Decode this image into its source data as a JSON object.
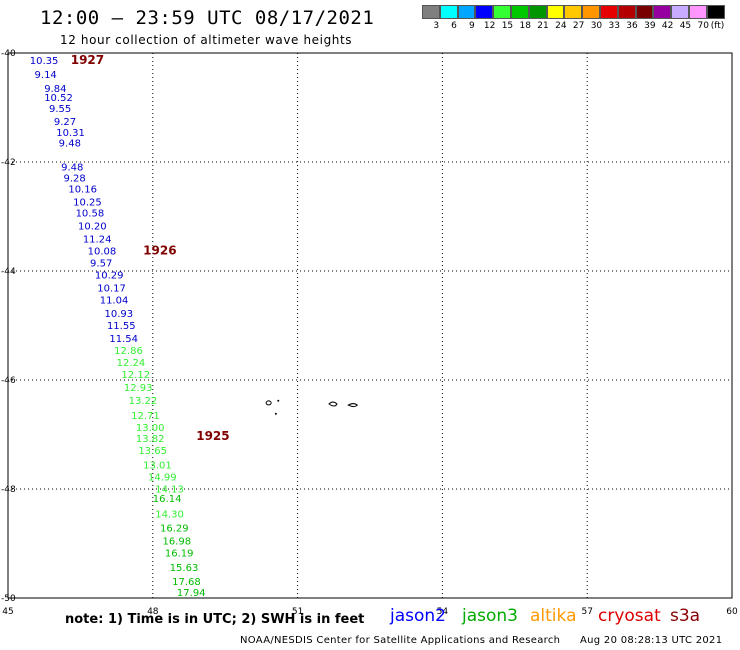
{
  "header": {
    "title": "12:00 – 23:59 UTC 08/17/2021",
    "subtitle": "12 hour collection of altimeter wave heights"
  },
  "colorbar": {
    "colors": [
      "#7f7f7f",
      "#00ffff",
      "#00a6ff",
      "#0000ff",
      "#33ff33",
      "#00c800",
      "#009600",
      "#ffff00",
      "#ffc800",
      "#ff9600",
      "#e60000",
      "#b40000",
      "#780000",
      "#9600a0",
      "#c8aaff",
      "#ff96ff",
      "#000000"
    ],
    "labels": [
      "3",
      "6",
      "9",
      "12",
      "15",
      "18",
      "21",
      "24",
      "27",
      "30",
      "33",
      "36",
      "39",
      "42",
      "45",
      "70",
      "(ft)"
    ]
  },
  "map": {
    "lon_range": [
      45,
      60
    ],
    "lat_range": [
      -50,
      -40
    ],
    "x_ticks": [
      "45",
      "48",
      "51",
      "54",
      "57",
      "60"
    ],
    "y_ticks": [
      "-40",
      "-42",
      "-44",
      "-46",
      "-48",
      "-50"
    ],
    "grid": true
  },
  "chart_data": {
    "type": "scatter",
    "x_label": "",
    "y_label": "",
    "xlim": [
      45,
      60
    ],
    "ylim": [
      -50,
      -40
    ],
    "passes": [
      {
        "label": "1927",
        "label_lon": 46.3,
        "label_lat": -40.2
      },
      {
        "label": "1926",
        "label_lon": 47.8,
        "label_lat": -43.7
      },
      {
        "label": "1925",
        "label_lon": 48.9,
        "label_lat": -47.1
      }
    ],
    "points": [
      {
        "lon": 45.45,
        "lat": -40.2,
        "swh": "10.35",
        "color": "#0000cc"
      },
      {
        "lon": 45.55,
        "lat": -40.46,
        "swh": "9.14",
        "color": "#0000cc"
      },
      {
        "lon": 45.75,
        "lat": -40.72,
        "swh": "9.84",
        "color": "#0000cc"
      },
      {
        "lon": 45.75,
        "lat": -40.88,
        "swh": "10.52",
        "color": "#0000cc"
      },
      {
        "lon": 45.85,
        "lat": -41.08,
        "swh": "9.55",
        "color": "#0000cc"
      },
      {
        "lon": 45.95,
        "lat": -41.32,
        "swh": "9.27",
        "color": "#0000cc"
      },
      {
        "lon": 46.0,
        "lat": -41.52,
        "swh": "10.31",
        "color": "#0000cc"
      },
      {
        "lon": 46.05,
        "lat": -41.72,
        "swh": "9.48",
        "color": "#0000cc"
      },
      {
        "lon": 46.1,
        "lat": -42.16,
        "swh": "9.48",
        "color": "#0000cc"
      },
      {
        "lon": 46.15,
        "lat": -42.36,
        "swh": "9.28",
        "color": "#0000cc"
      },
      {
        "lon": 46.25,
        "lat": -42.56,
        "swh": "10.16",
        "color": "#0000cc"
      },
      {
        "lon": 46.35,
        "lat": -42.8,
        "swh": "10.25",
        "color": "#0000cc"
      },
      {
        "lon": 46.4,
        "lat": -43.0,
        "swh": "10.58",
        "color": "#0000cc"
      },
      {
        "lon": 46.45,
        "lat": -43.24,
        "swh": "10.20",
        "color": "#0000cc"
      },
      {
        "lon": 46.55,
        "lat": -43.48,
        "swh": "11.24",
        "color": "#0000cc"
      },
      {
        "lon": 46.65,
        "lat": -43.7,
        "swh": "10.08",
        "color": "#0000cc"
      },
      {
        "lon": 46.7,
        "lat": -43.92,
        "swh": "9.57",
        "color": "#0000cc"
      },
      {
        "lon": 46.8,
        "lat": -44.14,
        "swh": "10.29",
        "color": "#0000cc"
      },
      {
        "lon": 46.85,
        "lat": -44.38,
        "swh": "10.17",
        "color": "#0000cc"
      },
      {
        "lon": 46.9,
        "lat": -44.6,
        "swh": "11.04",
        "color": "#0000cc"
      },
      {
        "lon": 47.0,
        "lat": -44.84,
        "swh": "10.93",
        "color": "#0000cc"
      },
      {
        "lon": 47.05,
        "lat": -45.06,
        "swh": "11.55",
        "color": "#0000cc"
      },
      {
        "lon": 47.1,
        "lat": -45.3,
        "swh": "11.54",
        "color": "#0000cc"
      },
      {
        "lon": 47.2,
        "lat": -45.52,
        "swh": "12.86",
        "color": "#33ee33"
      },
      {
        "lon": 47.25,
        "lat": -45.74,
        "swh": "12.24",
        "color": "#33ee33"
      },
      {
        "lon": 47.35,
        "lat": -45.96,
        "swh": "12.12",
        "color": "#33ee33"
      },
      {
        "lon": 47.4,
        "lat": -46.2,
        "swh": "12.93",
        "color": "#33ee33"
      },
      {
        "lon": 47.5,
        "lat": -46.44,
        "swh": "13.22",
        "color": "#33ee33"
      },
      {
        "lon": 47.55,
        "lat": -46.72,
        "swh": "12.71",
        "color": "#33ee33"
      },
      {
        "lon": 47.65,
        "lat": -46.94,
        "swh": "13.00",
        "color": "#33ee33"
      },
      {
        "lon": 47.65,
        "lat": -47.14,
        "swh": "13.82",
        "color": "#33ee33"
      },
      {
        "lon": 47.7,
        "lat": -47.36,
        "swh": "13.65",
        "color": "#33ee33"
      },
      {
        "lon": 47.8,
        "lat": -47.62,
        "swh": "13.01",
        "color": "#33ee33"
      },
      {
        "lon": 47.9,
        "lat": -47.84,
        "swh": "14.99",
        "color": "#33ee33"
      },
      {
        "lon": 48.05,
        "lat": -48.06,
        "swh": "14.13",
        "color": "#33ee33"
      },
      {
        "lon": 48.0,
        "lat": -48.24,
        "swh": "16.14",
        "color": "#00bb00"
      },
      {
        "lon": 48.05,
        "lat": -48.52,
        "swh": "14.30",
        "color": "#33ee33"
      },
      {
        "lon": 48.15,
        "lat": -48.78,
        "swh": "16.29",
        "color": "#00bb00"
      },
      {
        "lon": 48.2,
        "lat": -49.02,
        "swh": "16.98",
        "color": "#00bb00"
      },
      {
        "lon": 48.25,
        "lat": -49.24,
        "swh": "16.19",
        "color": "#00bb00"
      },
      {
        "lon": 48.35,
        "lat": -49.5,
        "swh": "15.63",
        "color": "#00bb00"
      },
      {
        "lon": 48.4,
        "lat": -49.76,
        "swh": "17.68",
        "color": "#00bb00"
      },
      {
        "lon": 48.5,
        "lat": -49.96,
        "swh": "17.94",
        "color": "#00bb00"
      }
    ]
  },
  "footer": {
    "note": "note:  1) Time is in UTC;  2) SWH is in feet",
    "credit": "NOAA/NESDIS Center for Satellite Applications and Research",
    "timestamp": "Aug 20 08:28:13 UTC 2021",
    "legend": [
      {
        "name": "jason2",
        "color": "#0000ff"
      },
      {
        "name": "jason3",
        "color": "#00aa00"
      },
      {
        "name": "altika",
        "color": "#ff9900"
      },
      {
        "name": "cryosat",
        "color": "#dd0000"
      },
      {
        "name": "s3a",
        "color": "#880000"
      }
    ]
  }
}
